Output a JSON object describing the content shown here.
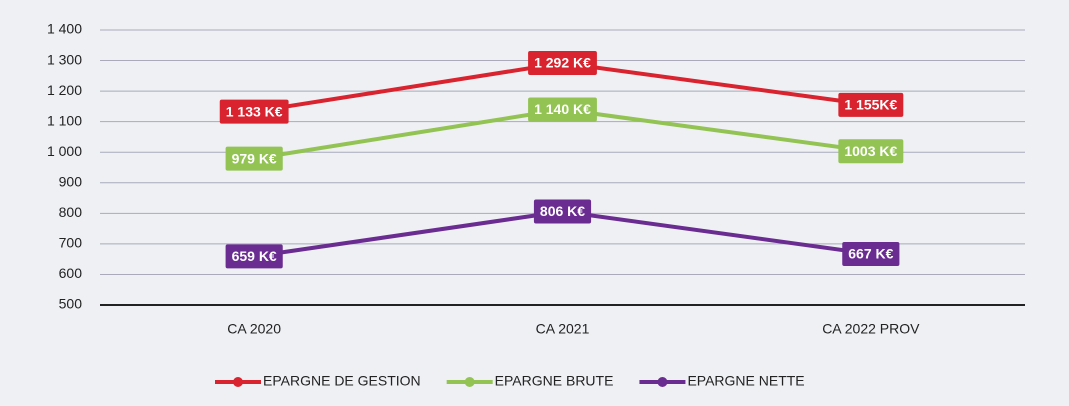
{
  "chart_data": {
    "type": "line",
    "categories": [
      "CA 2020",
      "CA 2021",
      "CA 2022 PROV"
    ],
    "series": [
      {
        "name": "EPARGNE DE GESTION",
        "color": "#d9232e",
        "values": [
          1133,
          1292,
          1155
        ],
        "value_labels": [
          "1 133 K€",
          "1 292 K€",
          "1 155K€"
        ]
      },
      {
        "name": "EPARGNE BRUTE",
        "color": "#92c353",
        "values": [
          979,
          1140,
          1003
        ],
        "value_labels": [
          "979 K€",
          "1 140 K€",
          "1003 K€"
        ]
      },
      {
        "name": "EPARGNE NETTE",
        "color": "#6a2c91",
        "values": [
          659,
          806,
          667
        ],
        "value_labels": [
          "659 K€",
          "806 K€",
          "667 K€"
        ]
      }
    ],
    "ylim": [
      500,
      1400
    ],
    "yticks": [
      {
        "value": 500,
        "label": "500"
      },
      {
        "value": 600,
        "label": "600"
      },
      {
        "value": 700,
        "label": "700"
      },
      {
        "value": 800,
        "label": "800"
      },
      {
        "value": 900,
        "label": "900"
      },
      {
        "value": 1000,
        "label": "1 000"
      },
      {
        "value": 1100,
        "label": "1 100"
      },
      {
        "value": 1200,
        "label": "1 200"
      },
      {
        "value": 1300,
        "label": "1 300"
      },
      {
        "value": 1400,
        "label": "1 400"
      }
    ],
    "grid": true,
    "legend": "bottom"
  }
}
